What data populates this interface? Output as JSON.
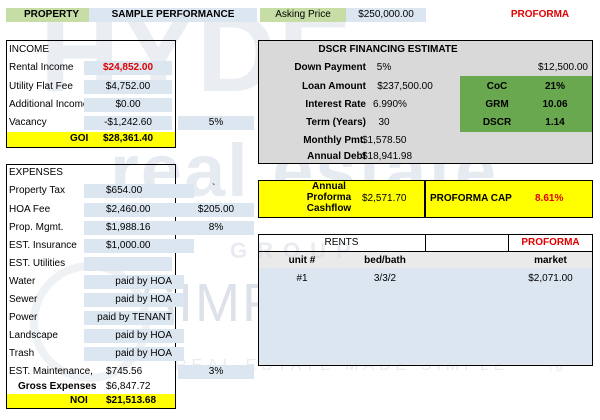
{
  "header": {
    "property_label": "PROPERTY",
    "sample_label": "SAMPLE PERFORMANCE",
    "asking_label": "Asking Price",
    "asking_value": "$250,000.00",
    "proforma_label": "PROFORMA"
  },
  "income": {
    "title": "INCOME",
    "rows": [
      {
        "label": "Rental Income",
        "value": "$24,852.00",
        "pct": ""
      },
      {
        "label": "Utility Flat Fee",
        "value": "$4,752.00",
        "pct": ""
      },
      {
        "label": "Additional Income",
        "value": "$0.00",
        "pct": ""
      },
      {
        "label": "Vacancy",
        "value": "-$1,242.60",
        "pct": "5%"
      }
    ],
    "goi_label": "GOI",
    "goi_value": "$28,361.40"
  },
  "dscr": {
    "title": "DSCR FINANCING ESTIMATE",
    "rows": [
      {
        "label": "Down Payment",
        "value": "5%",
        "extra": "$12,500.00"
      },
      {
        "label": "Loan Amount",
        "value": "$237,500.00"
      },
      {
        "label": "Interest Rate",
        "value": "6.990%"
      },
      {
        "label": "Term (Years)",
        "value": "30"
      },
      {
        "label": "Monthly Pmt.",
        "value": "$1,578.50"
      },
      {
        "label": "Annual Debt",
        "value": "$18,941.98"
      }
    ],
    "metrics": [
      {
        "label": "CoC",
        "value": "21%"
      },
      {
        "label": "GRM",
        "value": "10.06"
      },
      {
        "label": "DSCR",
        "value": "1.14"
      }
    ]
  },
  "cashflow": {
    "label_line1": "Annual",
    "label_line2": "Proforma",
    "label_line3": "Cashflow",
    "value": "$2,571.70",
    "cap_label": "PROFORMA CAP",
    "cap_value": "8.61%"
  },
  "expenses": {
    "title": "EXPENSES",
    "rows": [
      {
        "label": "Property Tax",
        "value": "$654.00",
        "extra": "`"
      },
      {
        "label": "HOA Fee",
        "value": "$2,460.00",
        "extra": "$205.00"
      },
      {
        "label": "Prop. Mgmt.",
        "value": "$1,988.16",
        "extra": "8%"
      },
      {
        "label": "EST. Insurance",
        "value": "$1,000.00",
        "extra": ""
      },
      {
        "label": "EST. Utilities",
        "value": "",
        "extra": ""
      },
      {
        "label": "Water",
        "value": "paid by HOA",
        "extra": ""
      },
      {
        "label": "Sewer",
        "value": "paid by HOA",
        "extra": ""
      },
      {
        "label": "Power",
        "value": "paid by TENANT",
        "extra": ""
      },
      {
        "label": "Landscape",
        "value": "paid by HOA",
        "extra": ""
      },
      {
        "label": "Trash",
        "value": "paid by HOA",
        "extra": ""
      },
      {
        "label": "EST. Maintenance,",
        "value": "$745.56",
        "extra": "3%"
      }
    ],
    "gross_label": "Gross Expenses",
    "gross_value": "$6,847.72",
    "noi_label": "NOI",
    "noi_value": "$21,513.68"
  },
  "rents": {
    "title": "RENTS",
    "proforma_label": "PROFORMA",
    "col_unit": "unit #",
    "col_bed": "bed/bath",
    "col_market": "market",
    "units": [
      {
        "unit": "#1",
        "bed": "3/3/2",
        "market": "$2,071.00"
      }
    ]
  },
  "watermark": {
    "top": "HYDE",
    "mid": "real estate",
    "group": "GROUP",
    "simply": "SIMPLY VEGAS",
    "tagline": "REAL ESTATE MADE SIMPLE",
    "tm": "TM"
  }
}
